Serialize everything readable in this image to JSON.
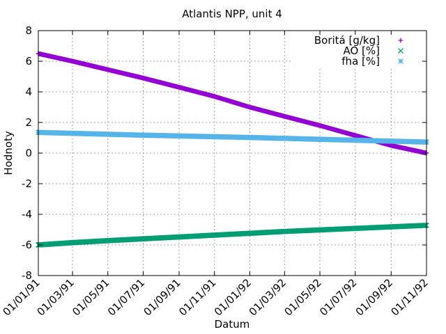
{
  "chart_data": {
    "type": "scatter",
    "title": "Atlantis NPP, unit 4",
    "xlabel": "Datum",
    "ylabel": "Hodnoty",
    "xlim": [
      "1991-01-01",
      "1992-11-01"
    ],
    "ylim": [
      -8,
      8
    ],
    "y_ticks": [
      "8",
      "6",
      "4",
      "2",
      "0",
      "-2",
      "-4",
      "-6",
      "-8"
    ],
    "y_tick_values": [
      8,
      6,
      4,
      2,
      0,
      -2,
      -4,
      -6,
      -8
    ],
    "x_ticks": [
      "01/01/91",
      "01/03/91",
      "01/05/91",
      "01/07/91",
      "01/09/91",
      "01/11/91",
      "01/01/92",
      "01/03/92",
      "01/05/92",
      "01/07/92",
      "01/09/92",
      "01/11/92"
    ],
    "x_tick_dates": [
      "1991-01-01",
      "1991-03-01",
      "1991-05-01",
      "1991-07-01",
      "1991-09-01",
      "1991-11-01",
      "1992-01-01",
      "1992-03-01",
      "1992-05-01",
      "1992-07-01",
      "1992-09-01",
      "1992-11-01"
    ],
    "grid": true,
    "legend_position": "top-right",
    "series": [
      {
        "name": "Boritá [g/kg]",
        "marker": "plus",
        "color": "#9400d3",
        "x": [
          "1991-01-01",
          "1991-03-01",
          "1991-05-01",
          "1991-07-01",
          "1991-09-01",
          "1991-11-01",
          "1992-01-01",
          "1992-03-01",
          "1992-05-01",
          "1992-07-01",
          "1992-09-01",
          "1992-11-01"
        ],
        "y": [
          6.5,
          6.0,
          5.45,
          4.9,
          4.3,
          3.7,
          3.0,
          2.4,
          1.8,
          1.15,
          0.5,
          0.0
        ]
      },
      {
        "name": "AO [%]",
        "marker": "cross",
        "color": "#009e73",
        "x": [
          "1991-01-01",
          "1991-03-01",
          "1991-05-01",
          "1991-07-01",
          "1991-09-01",
          "1991-11-01",
          "1992-01-01",
          "1992-03-01",
          "1992-05-01",
          "1992-07-01",
          "1992-09-01",
          "1992-11-01"
        ],
        "y": [
          -6.0,
          -5.85,
          -5.72,
          -5.6,
          -5.48,
          -5.36,
          -5.24,
          -5.12,
          -5.02,
          -4.92,
          -4.82,
          -4.72
        ]
      },
      {
        "name": "fha [%]",
        "marker": "star",
        "color": "#56b4e9",
        "x": [
          "1991-01-01",
          "1991-03-01",
          "1991-05-01",
          "1991-07-01",
          "1991-09-01",
          "1991-11-01",
          "1992-01-01",
          "1992-03-01",
          "1992-05-01",
          "1992-07-01",
          "1992-09-01",
          "1992-11-01"
        ],
        "y": [
          1.35,
          1.29,
          1.23,
          1.17,
          1.12,
          1.07,
          1.02,
          0.96,
          0.9,
          0.84,
          0.78,
          0.72
        ]
      }
    ]
  }
}
